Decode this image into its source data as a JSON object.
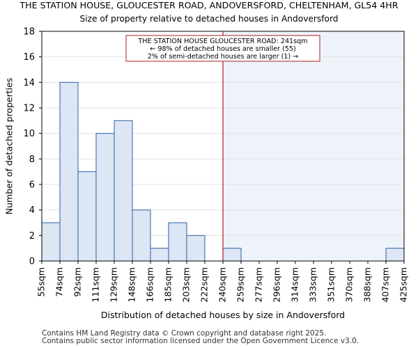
{
  "header": {
    "title": "THE STATION HOUSE, GLOUCESTER ROAD, ANDOVERSFORD, CHELTENHAM, GL54 4HR",
    "subtitle": "Size of property relative to detached houses in Andoversford"
  },
  "footer": {
    "line1": "Contains HM Land Registry data © Crown copyright and database right 2025.",
    "line2": "Contains public sector information licensed under the Open Government Licence v3.0."
  },
  "colors": {
    "bar_fill": "#dce6f4",
    "bar_edge": "#2a5fa8",
    "marker": "#b01c1c",
    "highlight": "#eef3fa"
  },
  "chart_data": {
    "type": "bar",
    "title": "Size of property relative to detached houses in Andoversford",
    "xlabel": "Distribution of detached houses by size in Andoversford",
    "ylabel": "Number of detached properties",
    "bin_edges": [
      "55sqm",
      "74sqm",
      "92sqm",
      "111sqm",
      "129sqm",
      "148sqm",
      "166sqm",
      "185sqm",
      "203sqm",
      "222sqm",
      "240sqm",
      "259sqm",
      "277sqm",
      "296sqm",
      "314sqm",
      "333sqm",
      "351sqm",
      "370sqm",
      "388sqm",
      "407sqm",
      "425sqm"
    ],
    "values": [
      3,
      14,
      7,
      10,
      11,
      4,
      1,
      3,
      2,
      0,
      1,
      0,
      0,
      0,
      0,
      0,
      0,
      0,
      0,
      1
    ],
    "ylim": [
      0,
      18
    ],
    "yticks": [
      0,
      2,
      4,
      6,
      8,
      10,
      12,
      14,
      16,
      18
    ],
    "marker_index": 10,
    "annotation": [
      "THE STATION HOUSE GLOUCESTER ROAD: 241sqm",
      "← 98% of detached houses are smaller (55)",
      "2% of semi-detached houses are larger (1) →"
    ]
  }
}
